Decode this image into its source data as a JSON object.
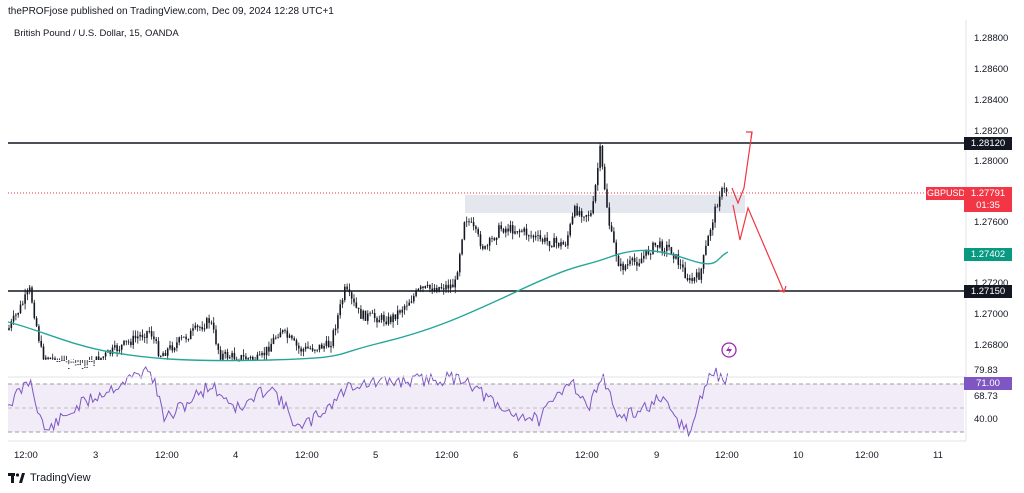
{
  "header": {
    "publisher_line": "thePROFjose published on TradingView.com, Dec 09, 2024 12:28 UTC+1",
    "instrument": "British Pound / U.S. Dollar, 15, OANDA"
  },
  "price_axis": {
    "ticks": [
      "1.28800",
      "1.28600",
      "1.28400",
      "1.28200",
      "1.28000",
      "1.27600",
      "1.27200",
      "1.27000",
      "1.26800"
    ]
  },
  "price_labels": {
    "resistance": "1.28120",
    "symbol": "GBPUSD",
    "last_price": "1.27791",
    "countdown": "01:35",
    "ma_value": "1.27402",
    "support": "1.27150"
  },
  "rsi": {
    "ticks": [
      "79.83",
      "68.73",
      "40.00"
    ],
    "current": "71.00"
  },
  "time_axis": {
    "ticks": [
      "12:00",
      "3",
      "12:00",
      "4",
      "12:00",
      "5",
      "12:00",
      "6",
      "12:00",
      "9",
      "12:00",
      "10",
      "12:00",
      "11"
    ]
  },
  "footer": {
    "brand": "TradingView"
  },
  "colors": {
    "up": "#26a69a",
    "down": "#ef5350",
    "candle": "#131722",
    "ma": "#26a69a",
    "rsi_line": "#7e57c2",
    "rsi_band": "#ede7f6",
    "arrow": "#f23645",
    "last_price_bg": "#f23645",
    "ma_bg": "#089981"
  }
}
